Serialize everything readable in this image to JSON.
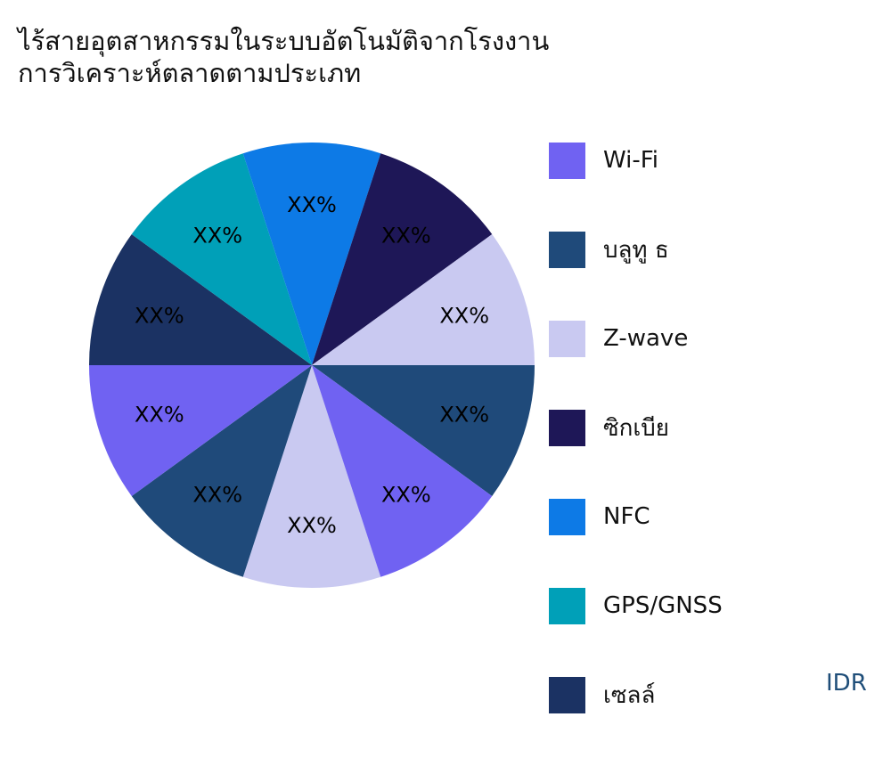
{
  "title_lines": [
    "ไร้สายอุตสาหกรรมในระบบอัตโนมัติจากโรงงาน",
    "การวิเคราะห์ตลาดตามประเภท"
  ],
  "brand": "IDR",
  "chart_data": {
    "type": "pie",
    "title": "ไร้สายอุตสาหกรรมในระบบอัตโนมัติจากโรงงาน การวิเคราะห์ตลาดตามประเภท",
    "legend_position": "right",
    "slices": [
      {
        "label": "Z-wave",
        "value": 10,
        "data_label": "XX%",
        "color": "#c9c9f1"
      },
      {
        "label": "บลูทู ธ",
        "value": 10,
        "data_label": "XX%",
        "color": "#1f4a7a"
      },
      {
        "label": "Wi-Fi",
        "value": 10,
        "data_label": "XX%",
        "color": "#7062f2"
      },
      {
        "label": "เซลล์",
        "value": 10,
        "data_label": "XX%",
        "color": "#1b3263"
      },
      {
        "label": "GPS/GNSS",
        "value": 10,
        "data_label": "XX%",
        "color": "#00a0b8"
      },
      {
        "label": "NFC",
        "value": 10,
        "data_label": "XX%",
        "color": "#0d7ae6"
      },
      {
        "label": "ซิกเบีย",
        "value": 10,
        "data_label": "XX%",
        "color": "#1e1757"
      },
      {
        "label": "Z-wave",
        "value": 10,
        "data_label": "XX%",
        "color": "#c9c9f1"
      },
      {
        "label": "บลูทู ธ",
        "value": 10,
        "data_label": "XX%",
        "color": "#1f4a7a"
      },
      {
        "label": "Wi-Fi",
        "value": 10,
        "data_label": "XX%",
        "color": "#7062f2"
      }
    ],
    "legend": [
      {
        "label": "Wi-Fi",
        "color": "#7062f2"
      },
      {
        "label": "บลูทู ธ",
        "color": "#1f4a7a"
      },
      {
        "label": "Z-wave",
        "color": "#c9c9f1"
      },
      {
        "label": "ซิกเบีย",
        "color": "#1e1757"
      },
      {
        "label": "NFC",
        "color": "#0d7ae6"
      },
      {
        "label": "GPS/GNSS",
        "color": "#00a0b8"
      },
      {
        "label": "เซลล์",
        "color": "#1b3263"
      }
    ]
  }
}
